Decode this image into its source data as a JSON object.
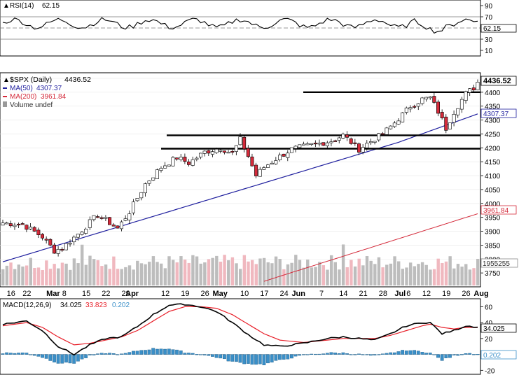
{
  "chart_data": {
    "type": "candlestick",
    "panels": {
      "rsi": {
        "label": "RSI(14)",
        "value_text": "62.15",
        "ticks": [
          "90",
          "70",
          "50",
          "30",
          "10"
        ],
        "ylim": [
          0,
          100
        ],
        "reference_lines": [
          70,
          50,
          30
        ],
        "last_value": 62.15,
        "color": "#000000"
      },
      "price": {
        "symbol_label": "$SPX (Daily)",
        "last_text": "4436.52",
        "last_close": 4436.52,
        "ma50": {
          "label": "MA(50)",
          "value_text": "4307.37",
          "value": 4307.37,
          "color": "#1f1f9e"
        },
        "ma200": {
          "label": "MA(200)",
          "value_text": "3961.84",
          "value": 3961.84,
          "color": "#d42a3a"
        },
        "volume_label": "Volume undef",
        "volume_last_text": "1955255",
        "ticks": [
          "4450",
          "4400",
          "4350",
          "4300",
          "4250",
          "4200",
          "4150",
          "4100",
          "4050",
          "4000",
          "3950",
          "3900",
          "3850",
          "3800",
          "3750"
        ],
        "ylim": [
          3700,
          4470
        ],
        "support_resistance_lines": [
          4400,
          4245,
          4197,
          4192
        ],
        "up_color": "#ffffff",
        "down_color": "#d42a3a"
      },
      "macd": {
        "label": "MACD(12,26,9)",
        "macd_text": "34.025",
        "signal_text": "33.823",
        "hist_text": "0.202",
        "macd_color": "#000000",
        "signal_color": "#e8202a",
        "hist_color": "#3a8fc8",
        "ticks": [
          "60",
          "40",
          "20",
          "0",
          "-20"
        ],
        "ylim": [
          -25,
          70
        ],
        "last_macd": 34.025,
        "last_signal": 33.823,
        "last_hist": 0.202
      }
    },
    "x_labels": [
      "16",
      "22",
      "Mar",
      "8",
      "15",
      "22",
      "29",
      "Apr",
      "12",
      "19",
      "26",
      "May",
      "10",
      "17",
      "24",
      "Jun",
      "7",
      "14",
      "21",
      "28",
      "Jul",
      "6",
      "12",
      "19",
      "26",
      "Aug"
    ],
    "x_label_positions": [
      1,
      5,
      11,
      15,
      20,
      25,
      30,
      31,
      40,
      45,
      50,
      53,
      60,
      65,
      70,
      73,
      80,
      85,
      90,
      95,
      99,
      102,
      106,
      111,
      116,
      119
    ],
    "num_bars": 121
  }
}
